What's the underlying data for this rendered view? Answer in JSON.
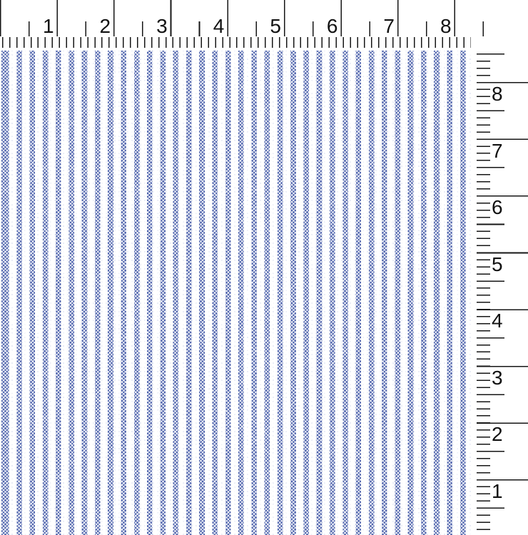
{
  "rulers": {
    "top": {
      "unit_labels": [
        "1",
        "2",
        "3",
        "4",
        "5",
        "6",
        "7",
        "8"
      ]
    },
    "right": {
      "unit_labels": [
        "8",
        "7",
        "6",
        "5",
        "4",
        "3",
        "2",
        "1"
      ]
    }
  },
  "fabric": {
    "stripe_count": 36,
    "colors": {
      "stripe_blue": "#4e63ac",
      "ground_white": "#ffffff"
    }
  },
  "tick_color": "#161616"
}
